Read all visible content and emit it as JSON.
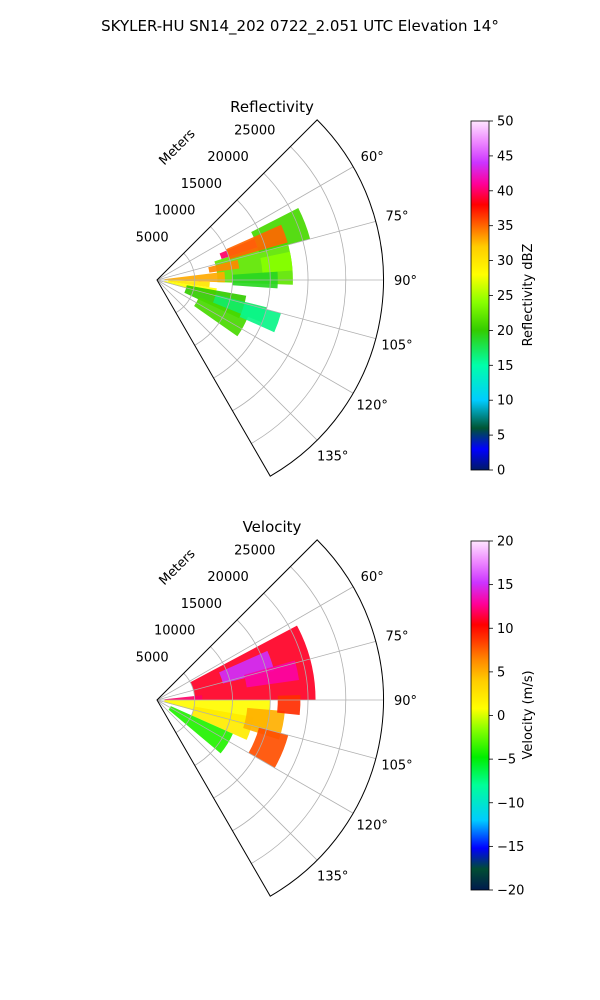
{
  "figure_title": "SKYLER-HU  SN14_202  0722_2.051 UTC Elevation 14°",
  "chart_data": [
    {
      "type": "heatmap",
      "projection": "polar-sector",
      "title": "Reflectivity",
      "radial_axis_label": "Meters",
      "radial_ticks": [
        5000,
        10000,
        15000,
        20000,
        25000
      ],
      "radial_tick_labels": [
        "5000",
        "10000",
        "15000",
        "20000",
        "25000"
      ],
      "rlim": [
        0,
        30000
      ],
      "azimuth_range_deg": [
        45,
        150
      ],
      "azimuth_ticks_deg": [
        60,
        75,
        90,
        105,
        120,
        135
      ],
      "azimuth_tick_labels": [
        "60°",
        "75°",
        "90°",
        "105°",
        "120°",
        "135°"
      ],
      "grid": true,
      "colorbar": {
        "label": "Reflectivity dBZ",
        "range": [
          0,
          50
        ],
        "ticks": [
          0,
          5,
          10,
          15,
          20,
          25,
          30,
          35,
          40,
          45,
          50
        ],
        "tick_labels": [
          "0",
          "5",
          "10",
          "15",
          "20",
          "25",
          "30",
          "35",
          "40",
          "45",
          "50"
        ],
        "colormap": "NWSRef"
      },
      "regions": [
        {
          "az": [
            72,
            92
          ],
          "r": [
            8000,
            18000
          ],
          "value": 22
        },
        {
          "az": [
            63,
            75
          ],
          "r": [
            14000,
            21000
          ],
          "value": 21
        },
        {
          "az": [
            67,
            72
          ],
          "r": [
            9000,
            14000
          ],
          "value": 40
        },
        {
          "az": [
            66,
            74
          ],
          "r": [
            10000,
            18000
          ],
          "value": 35
        },
        {
          "az": [
            76,
            82
          ],
          "r": [
            7000,
            11000
          ],
          "value": 34
        },
        {
          "az": [
            83,
            92
          ],
          "r": [
            1000,
            9000
          ],
          "value": 33
        },
        {
          "az": [
            92,
            98
          ],
          "r": [
            1500,
            7000
          ],
          "value": 30
        },
        {
          "az": [
            98,
            106
          ],
          "r": [
            1000,
            8000
          ],
          "value": 28
        },
        {
          "az": [
            100,
            115
          ],
          "r": [
            4000,
            12000
          ],
          "value": 20
        },
        {
          "az": [
            104,
            112
          ],
          "r": [
            8000,
            15000
          ],
          "value": 17
        },
        {
          "az": [
            112,
            125
          ],
          "r": [
            6000,
            13000
          ],
          "value": 21
        },
        {
          "az": [
            86,
            94
          ],
          "r": [
            10000,
            16000
          ],
          "value": 19
        },
        {
          "az": [
            78,
            86
          ],
          "r": [
            14000,
            18000
          ],
          "value": 24
        },
        {
          "az": [
            105,
            114
          ],
          "r": [
            12000,
            17000
          ],
          "value": 16
        }
      ]
    },
    {
      "type": "heatmap",
      "projection": "polar-sector",
      "title": "Velocity",
      "radial_axis_label": "Meters",
      "radial_ticks": [
        5000,
        10000,
        15000,
        20000,
        25000
      ],
      "radial_tick_labels": [
        "5000",
        "10000",
        "15000",
        "20000",
        "25000"
      ],
      "rlim": [
        0,
        30000
      ],
      "azimuth_range_deg": [
        45,
        150
      ],
      "azimuth_ticks_deg": [
        60,
        75,
        90,
        105,
        120,
        135
      ],
      "azimuth_tick_labels": [
        "60°",
        "75°",
        "90°",
        "105°",
        "120°",
        "135°"
      ],
      "grid": true,
      "colorbar": {
        "label": "Velocity (m/s)",
        "range": [
          -20,
          20
        ],
        "ticks": [
          -20,
          -15,
          -10,
          -5,
          0,
          5,
          10,
          15,
          20
        ],
        "tick_labels": [
          "−20",
          "−15",
          "−10",
          "−5",
          "0",
          "5",
          "10",
          "15",
          "20"
        ],
        "colormap": "NWSVel"
      },
      "regions": [
        {
          "az": [
            62,
            90
          ],
          "r": [
            5000,
            21000
          ],
          "value": 11
        },
        {
          "az": [
            66,
            76
          ],
          "r": [
            9000,
            16000
          ],
          "value": 15
        },
        {
          "az": [
            74,
            82
          ],
          "r": [
            12000,
            19000
          ],
          "value": 13
        },
        {
          "az": [
            84,
            90
          ],
          "r": [
            1000,
            6000
          ],
          "value": 12
        },
        {
          "az": [
            90,
            106
          ],
          "r": [
            1000,
            15000
          ],
          "value": 1
        },
        {
          "az": [
            100,
            114
          ],
          "r": [
            5000,
            13000
          ],
          "value": 2
        },
        {
          "az": [
            95,
            108
          ],
          "r": [
            12000,
            17000
          ],
          "value": 5
        },
        {
          "az": [
            105,
            120
          ],
          "r": [
            14000,
            18000
          ],
          "value": 8
        },
        {
          "az": [
            114,
            130
          ],
          "r": [
            2000,
            11000
          ],
          "value": -4
        },
        {
          "az": [
            88,
            96
          ],
          "r": [
            16000,
            19000
          ],
          "value": 9
        }
      ]
    }
  ]
}
